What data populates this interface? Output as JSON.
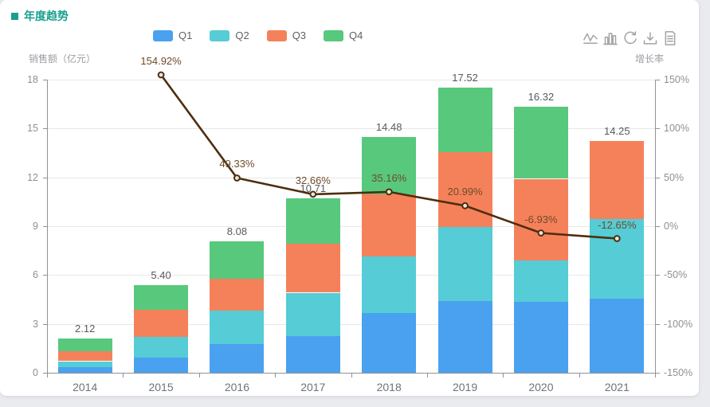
{
  "card": {
    "title": "年度趋势"
  },
  "legend": {
    "items": [
      {
        "label": "Q1",
        "color": "#4aa1ef"
      },
      {
        "label": "Q2",
        "color": "#55ccd6"
      },
      {
        "label": "Q3",
        "color": "#f5815a"
      },
      {
        "label": "Q4",
        "color": "#58c87c"
      }
    ]
  },
  "toolbar": {
    "icons": [
      "switch-to-line-icon",
      "switch-to-bar-icon",
      "restore-icon",
      "download-icon",
      "data-view-icon"
    ]
  },
  "axes": {
    "left_title": "销售额（亿元）",
    "right_title": "增长率",
    "left_ticks": [
      "0",
      "3",
      "6",
      "9",
      "12",
      "15",
      "18"
    ],
    "right_ticks": [
      "-150%",
      "-100%",
      "-50%",
      "0%",
      "50%",
      "100%",
      "150%"
    ]
  },
  "colors": {
    "title": "#17a08e",
    "line": "#4e2e0e",
    "growth_label": "#6d4c28",
    "marker_fill": "#e6e6e6"
  },
  "chart_data": [
    {
      "type": "bar",
      "stacked": true,
      "title": "年度趋势",
      "categories": [
        "2014",
        "2015",
        "2016",
        "2017",
        "2018",
        "2019",
        "2020",
        "2021"
      ],
      "series": [
        {
          "name": "Q1",
          "color": "#4aa1ef",
          "values": [
            0.35,
            0.95,
            1.78,
            2.25,
            3.68,
            4.4,
            4.36,
            4.55
          ]
        },
        {
          "name": "Q2",
          "color": "#55ccd6",
          "values": [
            0.35,
            1.25,
            2.05,
            2.66,
            3.5,
            4.55,
            2.55,
            4.9
          ]
        },
        {
          "name": "Q3",
          "color": "#f5815a",
          "values": [
            0.65,
            1.7,
            1.95,
            3.0,
            3.8,
            4.6,
            5.0,
            4.8
          ]
        },
        {
          "name": "Q4",
          "color": "#58c87c",
          "values": [
            0.77,
            1.5,
            2.3,
            2.8,
            3.5,
            3.97,
            4.41,
            0
          ]
        }
      ],
      "total_labels": [
        "2.12",
        "5.40",
        "8.08",
        "10.71",
        "14.48",
        "17.52",
        "16.32",
        "14.25"
      ],
      "ylabel": "销售额（亿元）",
      "ylim": [
        0,
        18
      ],
      "yticks": [
        0,
        3,
        6,
        9,
        12,
        15,
        18
      ],
      "grid": true,
      "legend_position": "top"
    },
    {
      "type": "line",
      "name": "增长率",
      "color": "#4e2e0e",
      "categories": [
        "2014",
        "2015",
        "2016",
        "2017",
        "2018",
        "2019",
        "2020",
        "2021"
      ],
      "values": [
        null,
        154.92,
        49.33,
        32.66,
        35.16,
        20.99,
        -6.93,
        -12.65
      ],
      "point_labels": [
        "",
        "154.92%",
        "49.33%",
        "32.66%",
        "35.16%",
        "20.99%",
        "-6.93%",
        "-12.65%"
      ],
      "ylabel": "增长率",
      "ylim": [
        -150,
        150
      ],
      "yticks": [
        -150,
        -100,
        -50,
        0,
        50,
        100,
        150
      ],
      "axis": "right"
    }
  ]
}
